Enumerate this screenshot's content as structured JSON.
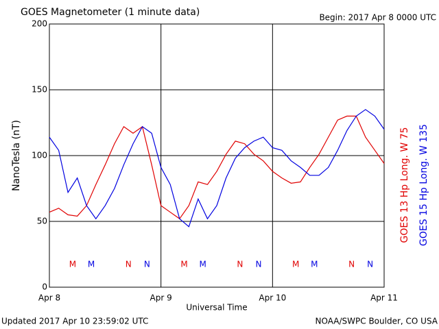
{
  "chart_data": {
    "type": "line",
    "title": "GOES Magnetometer (1 minute data)",
    "subtitle": "Begin:  2017 Apr 8 0000 UTC",
    "y_label": "NanoTesla (nT)",
    "x_label": "Universal Time",
    "footer_left": "Updated 2017 Apr 10 23:59:02 UTC",
    "footer_right": "NOAA/SWPC Boulder, CO USA",
    "x": [
      0,
      2,
      4,
      6,
      8,
      10,
      12,
      14,
      16,
      18,
      20,
      22,
      24,
      26,
      28,
      30,
      32,
      34,
      36,
      38,
      40,
      42,
      44,
      46,
      48,
      50,
      52,
      54,
      56,
      58,
      60,
      62,
      64,
      66,
      68,
      70,
      72
    ],
    "series": [
      {
        "name": "GOES 13 Hp  Long. W 75",
        "color": "#e00000",
        "values": [
          57,
          60,
          55,
          54,
          62,
          78,
          93,
          109,
          122,
          117,
          122,
          93,
          62,
          57,
          52,
          62,
          80,
          78,
          88,
          101,
          111,
          109,
          101,
          96,
          88,
          83,
          79,
          80,
          91,
          101,
          114,
          127,
          130,
          130,
          114,
          104,
          94
        ]
      },
      {
        "name": "GOES 15 Hp  Long. W 135",
        "color": "#0000e0",
        "values": [
          114,
          104,
          72,
          83,
          62,
          52,
          62,
          75,
          93,
          109,
          122,
          117,
          91,
          78,
          52,
          46,
          67,
          52,
          62,
          83,
          98,
          106,
          111,
          114,
          106,
          104,
          96,
          91,
          85,
          85,
          91,
          104,
          119,
          130,
          135,
          130,
          120
        ]
      }
    ],
    "markers": [
      {
        "label": "M",
        "x": 5,
        "series": 0
      },
      {
        "label": "M",
        "x": 9,
        "series": 1
      },
      {
        "label": "N",
        "x": 17,
        "series": 0
      },
      {
        "label": "N",
        "x": 21,
        "series": 1
      },
      {
        "label": "M",
        "x": 29,
        "series": 0
      },
      {
        "label": "M",
        "x": 33,
        "series": 1
      },
      {
        "label": "N",
        "x": 41,
        "series": 0
      },
      {
        "label": "N",
        "x": 45,
        "series": 1
      },
      {
        "label": "M",
        "x": 53,
        "series": 0
      },
      {
        "label": "M",
        "x": 57,
        "series": 1
      },
      {
        "label": "N",
        "x": 65,
        "series": 0
      },
      {
        "label": "N",
        "x": 69,
        "series": 1
      }
    ],
    "xlim": [
      0,
      72
    ],
    "xticks": [
      {
        "value": 0,
        "label": "Apr 8"
      },
      {
        "value": 24,
        "label": "Apr 9"
      },
      {
        "value": 48,
        "label": "Apr 10"
      },
      {
        "value": 72,
        "label": "Apr 11"
      }
    ],
    "ylim": [
      0,
      200
    ],
    "yticks": [
      0,
      50,
      100,
      150,
      200
    ],
    "grid": true
  }
}
